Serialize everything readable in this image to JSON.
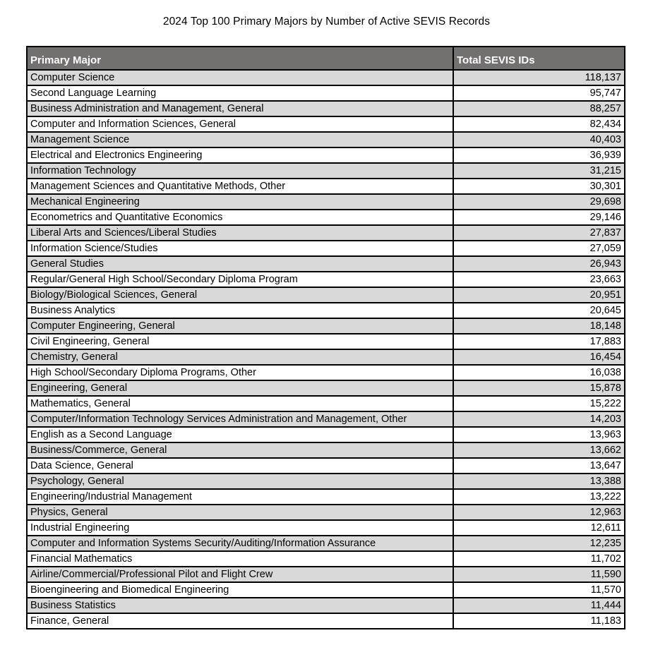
{
  "title": "2024 Top 100 Primary Majors by Number of Active SEVIS Records",
  "colors": {
    "header_bg": "#737070",
    "header_text": "#ffffff",
    "row_alt_bg": "#d9d9d9",
    "row_bg": "#ffffff",
    "border": "#000000",
    "title_text": "#000000"
  },
  "chart_data": {
    "type": "table",
    "title": "2024 Top 100 Primary Majors by Number of Active SEVIS Records",
    "columns": [
      "Primary Major",
      "Total SEVIS IDs"
    ],
    "rows": [
      [
        "Computer Science",
        "118,137"
      ],
      [
        "Second Language Learning",
        "95,747"
      ],
      [
        "Business Administration and Management, General",
        "88,257"
      ],
      [
        "Computer and Information Sciences, General",
        "82,434"
      ],
      [
        "Management Science",
        "40,403"
      ],
      [
        "Electrical and Electronics Engineering",
        "36,939"
      ],
      [
        "Information Technology",
        "31,215"
      ],
      [
        "Management Sciences and Quantitative Methods, Other",
        "30,301"
      ],
      [
        "Mechanical Engineering",
        "29,698"
      ],
      [
        "Econometrics and Quantitative Economics",
        "29,146"
      ],
      [
        "Liberal Arts and Sciences/Liberal Studies",
        "27,837"
      ],
      [
        "Information Science/Studies",
        "27,059"
      ],
      [
        "General Studies",
        "26,943"
      ],
      [
        "Regular/General High School/Secondary Diploma Program",
        "23,663"
      ],
      [
        "Biology/Biological Sciences, General",
        "20,951"
      ],
      [
        "Business Analytics",
        "20,645"
      ],
      [
        "Computer Engineering, General",
        "18,148"
      ],
      [
        "Civil Engineering, General",
        "17,883"
      ],
      [
        "Chemistry, General",
        "16,454"
      ],
      [
        "High School/Secondary Diploma Programs, Other",
        "16,038"
      ],
      [
        "Engineering, General",
        "15,878"
      ],
      [
        "Mathematics, General",
        "15,222"
      ],
      [
        "Computer/Information Technology Services Administration and Management, Other",
        "14,203"
      ],
      [
        "English as a Second Language",
        "13,963"
      ],
      [
        "Business/Commerce, General",
        "13,662"
      ],
      [
        "Data Science, General",
        "13,647"
      ],
      [
        "Psychology, General",
        "13,388"
      ],
      [
        "Engineering/Industrial Management",
        "13,222"
      ],
      [
        "Physics, General",
        "12,963"
      ],
      [
        "Industrial Engineering",
        "12,611"
      ],
      [
        "Computer and Information Systems Security/Auditing/Information Assurance",
        "12,235"
      ],
      [
        "Financial Mathematics",
        "11,702"
      ],
      [
        "Airline/Commercial/Professional Pilot and Flight Crew",
        "11,590"
      ],
      [
        "Bioengineering and Biomedical Engineering",
        "11,570"
      ],
      [
        "Business Statistics",
        "11,444"
      ],
      [
        "Finance, General",
        "11,183"
      ]
    ]
  }
}
